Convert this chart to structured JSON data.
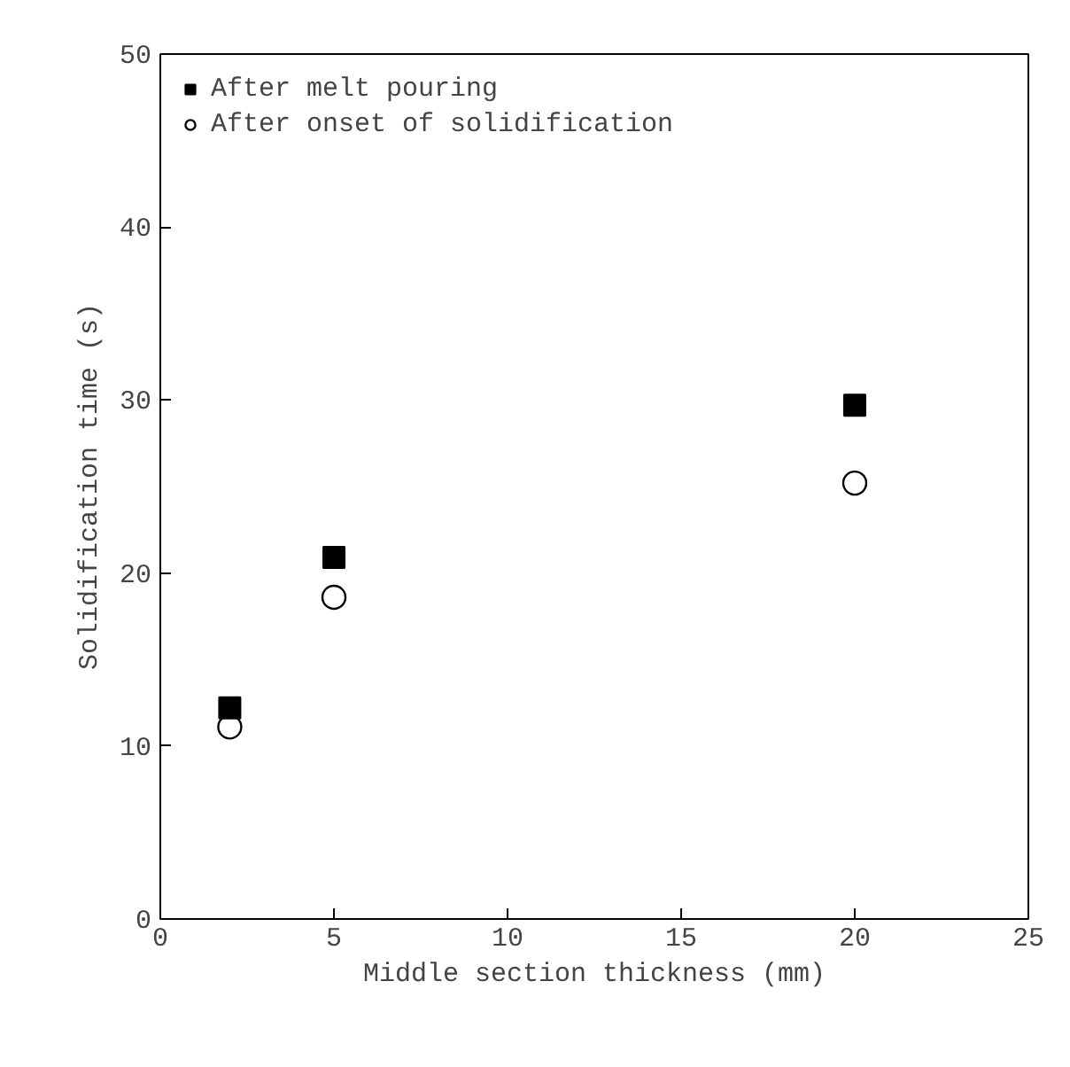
{
  "chart_data": {
    "type": "scatter",
    "xlabel": "Middle section thickness (mm)",
    "ylabel": "Solidification time (s)",
    "xlim": [
      0,
      25
    ],
    "xticks": [
      0,
      5,
      10,
      15,
      20,
      25
    ],
    "ylim": [
      0,
      50
    ],
    "yticks": [
      0,
      10,
      20,
      30,
      40,
      50
    ],
    "grid": false,
    "legend": "top left",
    "series": [
      {
        "name": "After melt pouring",
        "color": "#000000",
        "marker": "square",
        "x": [
          2,
          5,
          20
        ],
        "values": [
          12.2,
          20.9,
          29.7
        ]
      },
      {
        "name": "After onset of solidification",
        "color": "#000000",
        "marker": "circle",
        "x": [
          2,
          5,
          20
        ],
        "values": [
          11.1,
          18.6,
          25.2
        ]
      }
    ]
  }
}
